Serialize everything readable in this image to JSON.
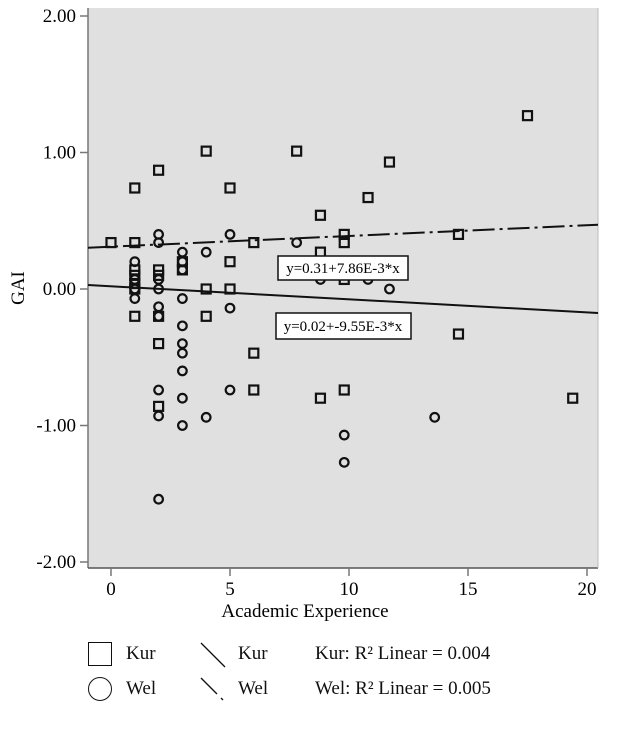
{
  "chart_data": {
    "type": "scatter",
    "title": "",
    "xlabel": "Academic Experience",
    "ylabel": "GAI",
    "xlim": [
      -1,
      20.5
    ],
    "ylim": [
      -2.05,
      2.05
    ],
    "xticks": [
      0,
      5,
      10,
      15,
      20
    ],
    "xtick_labels": [
      "0",
      "5",
      "10",
      "15",
      "20"
    ],
    "yticks": [
      2.0,
      1.0,
      0.0,
      -1.0,
      -2.0
    ],
    "ytick_labels": [
      "2.00",
      "1.00",
      "0.00",
      "-1.00",
      "-2.00"
    ],
    "grid": false,
    "background": "#e0e0e0",
    "legend_position": "bottom",
    "series": [
      {
        "name": "Kur",
        "marker": "square",
        "points": [
          [
            0,
            0.34
          ],
          [
            1,
            0.74
          ],
          [
            1,
            0.34
          ],
          [
            1,
            0.14
          ],
          [
            1,
            0.1
          ],
          [
            1,
            0.04
          ],
          [
            1,
            0.0
          ],
          [
            1,
            -0.2
          ],
          [
            2,
            0.87
          ],
          [
            2,
            0.14
          ],
          [
            2,
            0.1
          ],
          [
            2,
            -0.2
          ],
          [
            2,
            -0.4
          ],
          [
            2,
            -0.86
          ],
          [
            3,
            0.14
          ],
          [
            3,
            0.2
          ],
          [
            4,
            1.01
          ],
          [
            4,
            0.0
          ],
          [
            4,
            -0.2
          ],
          [
            5,
            0.74
          ],
          [
            5,
            0.2
          ],
          [
            5,
            0.0
          ],
          [
            6,
            0.34
          ],
          [
            6,
            -0.47
          ],
          [
            6,
            -0.74
          ],
          [
            7.8,
            1.01
          ],
          [
            8.8,
            0.54
          ],
          [
            8.8,
            0.27
          ],
          [
            8.8,
            -0.8
          ],
          [
            9.8,
            0.4
          ],
          [
            9.8,
            0.34
          ],
          [
            9.8,
            0.07
          ],
          [
            9.8,
            -0.74
          ],
          [
            10.8,
            0.67
          ],
          [
            11.7,
            0.93
          ],
          [
            14.6,
            0.4
          ],
          [
            14.6,
            -0.33
          ],
          [
            17.5,
            1.27
          ],
          [
            19.4,
            -0.8
          ]
        ]
      },
      {
        "name": "Wel",
        "marker": "circle",
        "points": [
          [
            1,
            0.2
          ],
          [
            1,
            0.07
          ],
          [
            1,
            0.0
          ],
          [
            1,
            -0.07
          ],
          [
            2,
            0.4
          ],
          [
            2,
            0.34
          ],
          [
            2,
            0.07
          ],
          [
            2,
            0.0
          ],
          [
            2,
            -0.13
          ],
          [
            2,
            -0.2
          ],
          [
            2,
            -0.74
          ],
          [
            2,
            -0.93
          ],
          [
            2,
            -1.54
          ],
          [
            3,
            0.27
          ],
          [
            3,
            0.2
          ],
          [
            3,
            0.14
          ],
          [
            3,
            -0.07
          ],
          [
            3,
            -0.27
          ],
          [
            3,
            -0.4
          ],
          [
            3,
            -0.47
          ],
          [
            3,
            -0.6
          ],
          [
            3,
            -0.8
          ],
          [
            3,
            -1.0
          ],
          [
            4,
            0.27
          ],
          [
            4,
            -0.94
          ],
          [
            5,
            0.4
          ],
          [
            5,
            -0.14
          ],
          [
            5,
            -0.74
          ],
          [
            7.8,
            0.34
          ],
          [
            8.8,
            0.07
          ],
          [
            9.8,
            -1.07
          ],
          [
            9.8,
            -1.27
          ],
          [
            10.8,
            0.07
          ],
          [
            11.7,
            0.0
          ],
          [
            13.6,
            -0.94
          ]
        ]
      }
    ],
    "fit_lines": [
      {
        "name": "Kur",
        "style": "dash-dot",
        "intercept": 0.31,
        "slope": 0.00786,
        "label": "y=0.31+7.86E-3*x",
        "r2_label": "Kur: R² Linear = 0.004",
        "r2": 0.004
      },
      {
        "name": "Wel",
        "style": "solid",
        "intercept": 0.02,
        "slope": -0.00955,
        "label": "y=0.02+-9.55E-3*x",
        "r2_label": "Wel: R² Linear = 0.005",
        "r2": 0.005
      }
    ]
  },
  "axes": {
    "xlabel": "Academic Experience",
    "ylabel": "GAI",
    "xtick_labels": [
      "0",
      "5",
      "10",
      "15",
      "20"
    ],
    "ytick_labels": [
      "2.00",
      "1.00",
      "0.00",
      "-1.00",
      "-2.00"
    ]
  },
  "annotations": {
    "kur_equation": "y=0.31+7.86E-3*x",
    "wel_equation": "y=0.02+-9.55E-3*x"
  },
  "legend": {
    "markers": [
      {
        "name": "Kur",
        "symbol": "square-icon"
      },
      {
        "name": "Wel",
        "symbol": "circle-icon"
      }
    ],
    "lines": [
      {
        "name": "Kur"
      },
      {
        "name": "Wel"
      }
    ],
    "r2": [
      "Kur: R² Linear = 0.004",
      "Wel: R² Linear = 0.005"
    ],
    "kur_marker_label": "Kur",
    "wel_marker_label": "Wel",
    "kur_line_label": "Kur",
    "wel_line_label": "Wel",
    "kur_r2": "Kur: R² Linear = 0.004",
    "wel_r2": "Wel: R² Linear = 0.005"
  }
}
